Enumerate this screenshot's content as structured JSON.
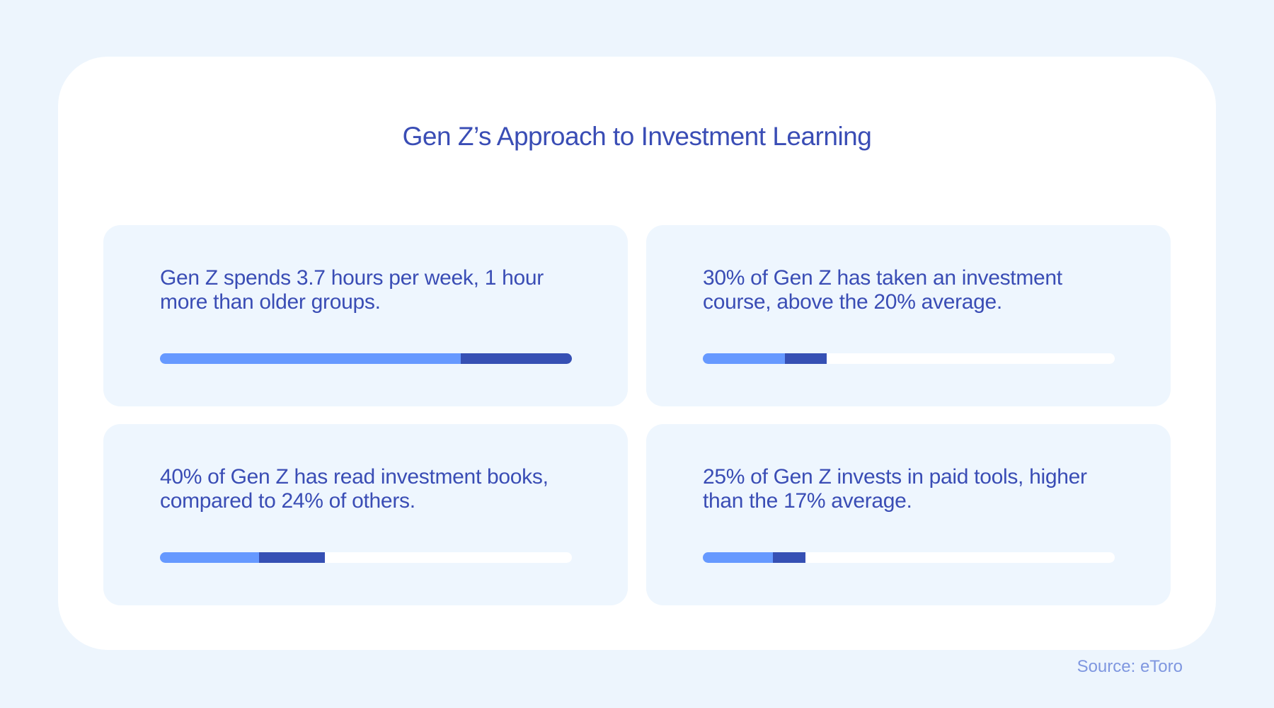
{
  "title": "Gen Z’s Approach to Investment Learning",
  "source": "Source: eToro",
  "colors": {
    "light": "#6699ff",
    "dark": "#3650b4",
    "track": "#ffffff",
    "text": "#3a4db5"
  },
  "chart_data": {
    "type": "bar",
    "title": "Gen Z’s Approach to Investment Learning",
    "cards": [
      {
        "text": "Gen Z spends 3.7 hours per week, 1 hour more than older groups.",
        "others_value": 2.7,
        "genz_value": 3.7,
        "max": 3.7,
        "unit": "hours/week"
      },
      {
        "text": "30% of Gen Z has taken an investment course, above the 20% average.",
        "others_value": 20,
        "genz_value": 30,
        "max": 100,
        "unit": "%"
      },
      {
        "text": "40% of Gen Z has read investment books, compared to 24% of others.",
        "others_value": 24,
        "genz_value": 40,
        "max": 100,
        "unit": "%"
      },
      {
        "text": "25% of Gen Z invests in paid tools, higher than the 17% average.",
        "others_value": 17,
        "genz_value": 25,
        "max": 100,
        "unit": "%"
      }
    ]
  }
}
